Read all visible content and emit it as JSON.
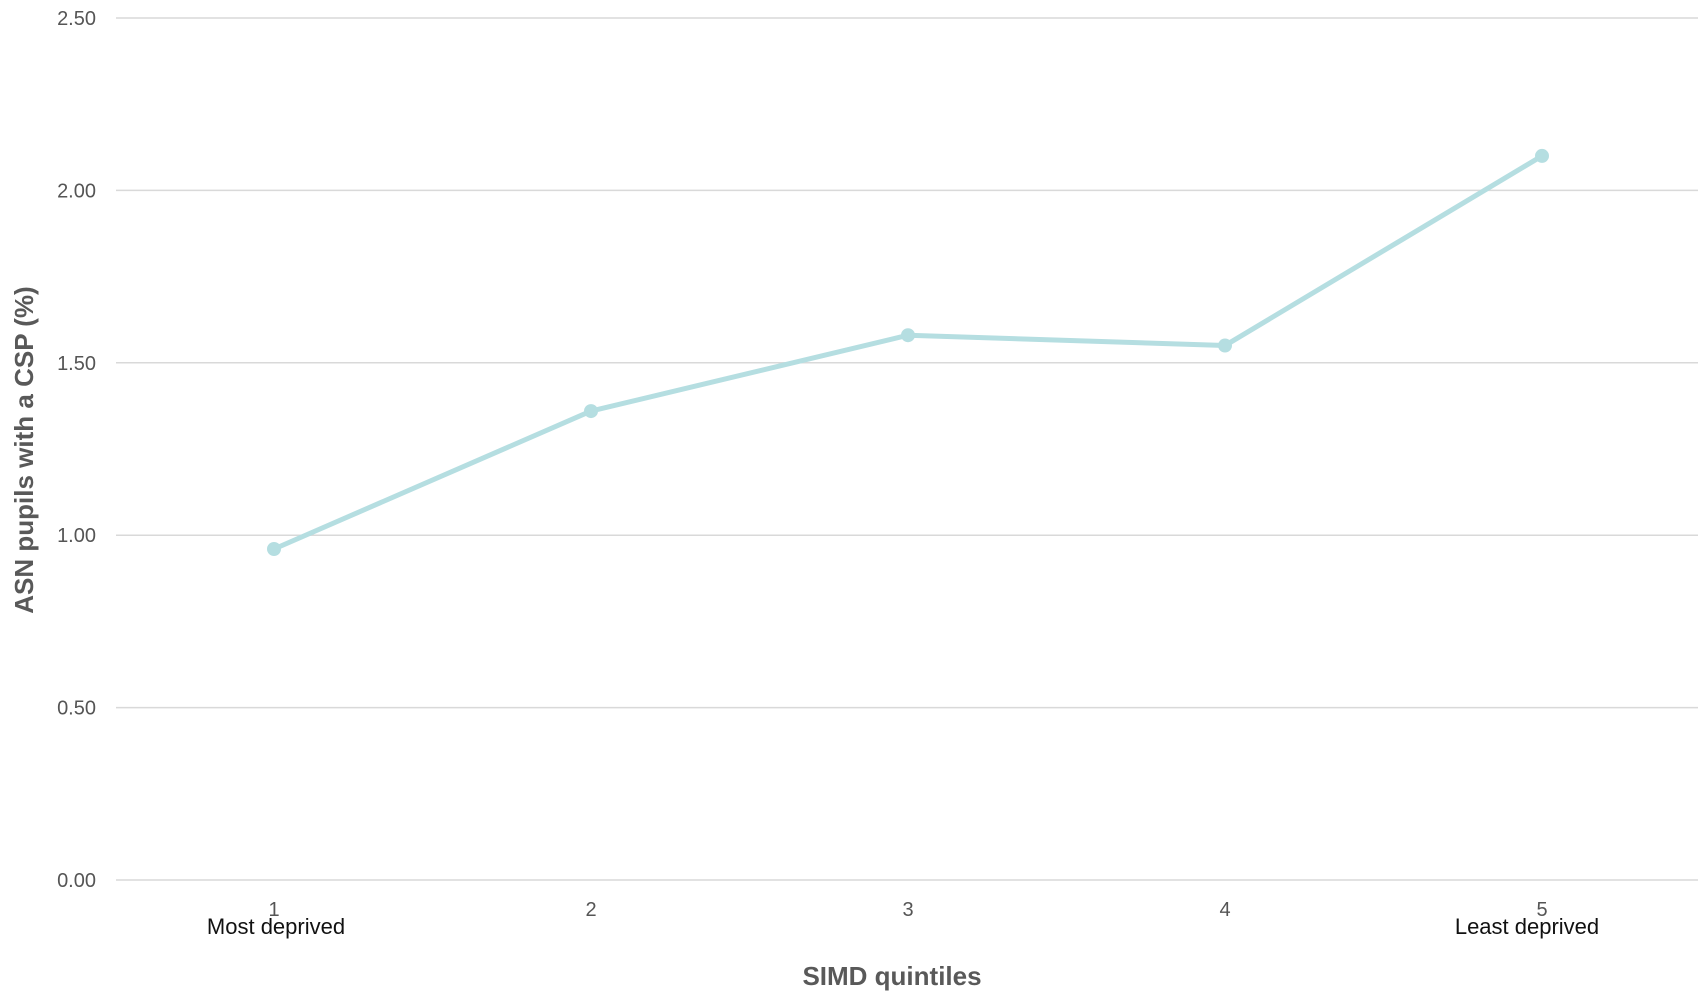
{
  "chart_data": {
    "type": "line",
    "xlabel": "SIMD quintiles",
    "ylabel": "ASN pupils with a CSP (%)",
    "categories": [
      "1",
      "2",
      "3",
      "4",
      "5"
    ],
    "category_notes": {
      "first": "Most deprived",
      "last": "Least deprived"
    },
    "y_ticks": [
      "0.00",
      "0.50",
      "1.00",
      "1.50",
      "2.00",
      "2.50"
    ],
    "ylim": [
      0,
      2.5
    ],
    "series": [
      {
        "values": [
          0.96,
          1.36,
          1.58,
          1.55,
          2.1
        ]
      }
    ],
    "grid": true,
    "color": "#b5dee1"
  }
}
